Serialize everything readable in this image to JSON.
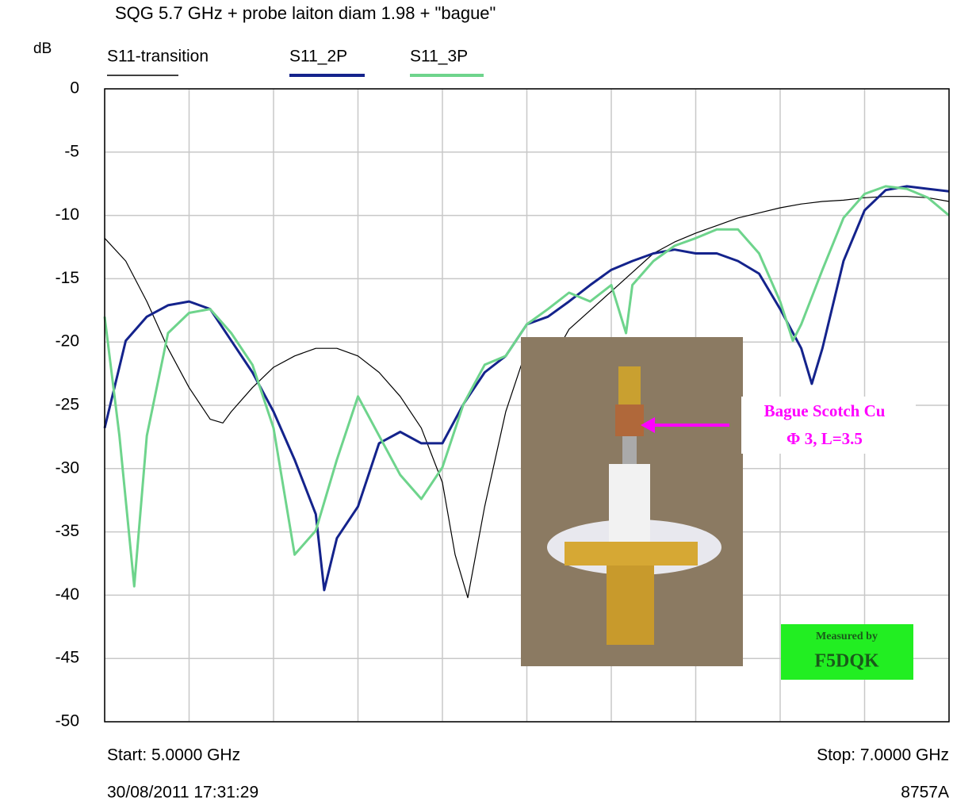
{
  "chart_data": {
    "type": "line",
    "title": "SQG 5.7 GHz + probe laiton diam 1.98 + \"bague\"",
    "y_label": "dB",
    "start_label": "Start: 5.0000 GHz",
    "stop_label": "Stop: 7.0000 GHz",
    "timestamp": "30/08/2011 17:31:29",
    "instrument": "8757A",
    "xlim": [
      5,
      7
    ],
    "xgrid": [
      5,
      5.2,
      5.4,
      5.6,
      5.8,
      6,
      6.2,
      6.4,
      6.6,
      6.8,
      7
    ],
    "ylim": [
      -50,
      0
    ],
    "yticks": [
      0,
      -5,
      -10,
      -15,
      -20,
      -25,
      -30,
      -35,
      -40,
      -45,
      -50
    ],
    "grid": true,
    "series": [
      {
        "name": "S11-transition",
        "color": "#000000",
        "x": [
          5.0,
          5.05,
          5.1,
          5.15,
          5.2,
          5.25,
          5.28,
          5.3,
          5.35,
          5.4,
          5.45,
          5.5,
          5.55,
          5.6,
          5.65,
          5.7,
          5.75,
          5.8,
          5.83,
          5.86,
          5.9,
          5.95,
          6.0,
          6.05,
          6.1,
          6.15,
          6.2,
          6.25,
          6.3,
          6.35,
          6.4,
          6.45,
          6.5,
          6.55,
          6.6,
          6.65,
          6.7,
          6.75,
          6.8,
          6.85,
          6.9,
          6.95,
          7.0
        ],
        "values": [
          -11.8,
          -13.6,
          -16.8,
          -20.5,
          -23.6,
          -26.1,
          -26.4,
          -25.5,
          -23.6,
          -22,
          -21.1,
          -20.5,
          -20.5,
          -21.1,
          -22.4,
          -24.3,
          -26.8,
          -31.1,
          -36.8,
          -40.2,
          -33,
          -25.5,
          -20.5,
          -22,
          -19,
          -17.5,
          -16,
          -14.5,
          -13,
          -12.1,
          -11.4,
          -10.8,
          -10.2,
          -9.8,
          -9.4,
          -9.1,
          -8.9,
          -8.8,
          -8.6,
          -8.5,
          -8.5,
          -8.6,
          -8.9
        ]
      },
      {
        "name": "S11_2P",
        "color": "#14238c",
        "x": [
          5.0,
          5.05,
          5.1,
          5.15,
          5.2,
          5.25,
          5.3,
          5.35,
          5.4,
          5.45,
          5.5,
          5.52,
          5.55,
          5.6,
          5.65,
          5.7,
          5.75,
          5.8,
          5.85,
          5.9,
          5.95,
          6.0,
          6.05,
          6.1,
          6.15,
          6.2,
          6.25,
          6.3,
          6.35,
          6.4,
          6.45,
          6.5,
          6.55,
          6.6,
          6.65,
          6.675,
          6.7,
          6.75,
          6.8,
          6.85,
          6.9,
          6.95,
          7.0
        ],
        "values": [
          -26.8,
          -19.9,
          -18,
          -17.1,
          -16.8,
          -17.4,
          -19.9,
          -22.4,
          -25.5,
          -29.3,
          -33.6,
          -39.6,
          -35.5,
          -33,
          -28,
          -27.1,
          -28,
          -28,
          -24.9,
          -22.4,
          -21.1,
          -18.6,
          -18,
          -16.8,
          -15.5,
          -14.3,
          -13.6,
          -13,
          -12.7,
          -13,
          -13,
          -13.6,
          -14.6,
          -17.4,
          -20.5,
          -23.3,
          -20.5,
          -13.6,
          -9.6,
          -8,
          -7.7,
          -7.9,
          -8.1
        ]
      },
      {
        "name": "S11_3P",
        "color": "#6ed48c",
        "x": [
          5.0,
          5.035,
          5.07,
          5.1,
          5.15,
          5.2,
          5.25,
          5.3,
          5.35,
          5.4,
          5.45,
          5.5,
          5.55,
          5.6,
          5.65,
          5.7,
          5.75,
          5.8,
          5.85,
          5.9,
          5.95,
          6.0,
          6.05,
          6.1,
          6.15,
          6.2,
          6.235,
          6.25,
          6.3,
          6.35,
          6.4,
          6.45,
          6.5,
          6.55,
          6.6,
          6.63,
          6.65,
          6.7,
          6.75,
          6.8,
          6.85,
          6.9,
          6.95,
          7.0
        ],
        "values": [
          -18,
          -27.4,
          -39.3,
          -27.4,
          -19.3,
          -17.7,
          -17.4,
          -19.3,
          -21.8,
          -26.8,
          -36.8,
          -34.9,
          -29.3,
          -24.3,
          -27.4,
          -30.5,
          -32.4,
          -29.9,
          -24.9,
          -21.8,
          -21.1,
          -18.6,
          -17.4,
          -16.1,
          -16.8,
          -15.5,
          -19.3,
          -15.5,
          -13.6,
          -12.4,
          -11.8,
          -11.1,
          -11.1,
          -13,
          -16.8,
          -19.9,
          -18.6,
          -14.3,
          -10.2,
          -8.3,
          -7.7,
          -7.9,
          -8.6,
          -10
        ]
      }
    ],
    "annotations": {
      "inset_label_1": "Bague Scotch Cu",
      "inset_label_2": "Φ 3, L=3.5",
      "badge_1": "Measured by",
      "badge_2": "F5DQK"
    }
  }
}
